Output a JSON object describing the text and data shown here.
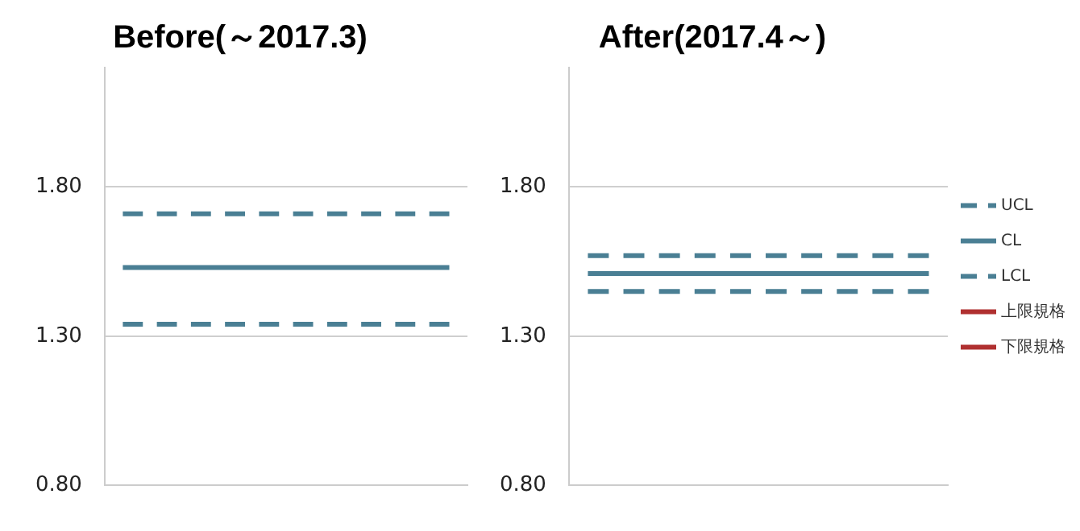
{
  "chart_data": [
    {
      "type": "line",
      "title": "Before(～2017.3)",
      "categories": [
        null,
        null,
        null,
        null,
        null,
        null,
        null,
        null,
        null,
        null
      ],
      "ylim": [
        0.8,
        2.2
      ],
      "yticks": [
        {
          "value": 0.8,
          "label": "0.80"
        },
        {
          "value": 1.3,
          "label": "1.30"
        },
        {
          "value": 1.8,
          "label": "1.80"
        }
      ],
      "grid": "y",
      "legend": false,
      "marker": "none",
      "series": [
        {
          "color": "#4a7f94",
          "line_style": "dashed",
          "values": [
            1.71,
            1.71,
            1.71,
            1.71,
            1.71,
            1.71,
            1.71,
            1.71,
            1.71,
            1.71
          ]
        },
        {
          "color": "#4a7f94",
          "line_style": "solid",
          "values": [
            1.53,
            1.53,
            1.53,
            1.53,
            1.53,
            1.53,
            1.53,
            1.53,
            1.53,
            1.53
          ]
        },
        {
          "color": "#4a7f94",
          "line_style": "dashed",
          "values": [
            1.34,
            1.34,
            1.34,
            1.34,
            1.34,
            1.34,
            1.34,
            1.34,
            1.34,
            1.34
          ]
        }
      ]
    },
    {
      "type": "line",
      "title": "After(2017.4～)",
      "categories": [
        null,
        null,
        null,
        null,
        null,
        null,
        null,
        null,
        null,
        null
      ],
      "ylim": [
        0.8,
        2.2
      ],
      "yticks": [
        {
          "value": 0.8,
          "label": "0.80"
        },
        {
          "value": 1.3,
          "label": "1.30"
        },
        {
          "value": 1.8,
          "label": "1.80"
        }
      ],
      "grid": "y",
      "legend": "right",
      "marker": "none",
      "series": [
        {
          "name": "UCL",
          "color": "#4a7f94",
          "line_style": "dashed",
          "values": [
            1.57,
            1.57,
            1.57,
            1.57,
            1.57,
            1.57,
            1.57,
            1.57,
            1.57,
            1.57
          ]
        },
        {
          "name": "CL",
          "color": "#4a7f94",
          "line_style": "solid",
          "values": [
            1.51,
            1.51,
            1.51,
            1.51,
            1.51,
            1.51,
            1.51,
            1.51,
            1.51,
            1.51
          ]
        },
        {
          "name": "LCL",
          "color": "#4a7f94",
          "line_style": "dashed",
          "values": [
            1.45,
            1.45,
            1.45,
            1.45,
            1.45,
            1.45,
            1.45,
            1.45,
            1.45,
            1.45
          ]
        },
        {
          "name": "上限規格",
          "color": "#b03030",
          "line_style": "solid",
          "values": [
            null,
            null,
            null,
            null,
            null,
            null,
            null,
            null,
            null,
            null
          ]
        },
        {
          "name": "下限規格",
          "color": "#b03030",
          "line_style": "solid",
          "values": [
            null,
            null,
            null,
            null,
            null,
            null,
            null,
            null,
            null,
            null
          ]
        }
      ]
    }
  ]
}
